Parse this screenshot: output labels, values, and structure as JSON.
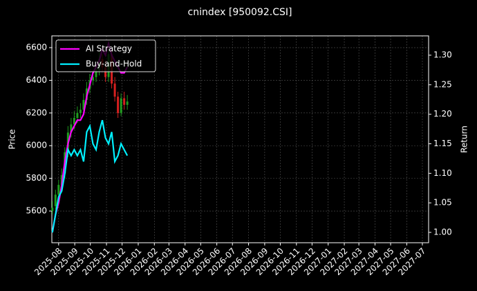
{
  "chart_data": {
    "type": "candlestick",
    "title": "cnindex [950092.CSI]",
    "ylabel": "Price",
    "y2label": "Return",
    "x": [
      -12,
      -6,
      0,
      6,
      12,
      18,
      24,
      30,
      36,
      42,
      48,
      54,
      60,
      66,
      72,
      78,
      84,
      90,
      96,
      102,
      108,
      114,
      120,
      126,
      132
    ],
    "open": [
      5600,
      5630,
      5700,
      5760,
      5830,
      5960,
      6080,
      6130,
      6170,
      6200,
      6220,
      6280,
      6350,
      6400,
      6420,
      6460,
      6530,
      6480,
      6420,
      6560,
      6380,
      6300,
      6200,
      6290,
      6250
    ],
    "high": [
      5660,
      5730,
      5790,
      5860,
      5990,
      6120,
      6170,
      6210,
      6240,
      6260,
      6320,
      6390,
      6440,
      6460,
      6500,
      6570,
      6560,
      6520,
      6600,
      6580,
      6420,
      6330,
      6320,
      6330,
      6310
    ],
    "low": [
      5580,
      5610,
      5680,
      5740,
      5800,
      5930,
      6050,
      6100,
      6140,
      6170,
      6190,
      6250,
      6320,
      6370,
      6390,
      6430,
      6450,
      6390,
      6390,
      6350,
      6270,
      6170,
      6180,
      6220,
      6220
    ],
    "close": [
      5620,
      5700,
      5760,
      5820,
      5960,
      6080,
      6130,
      6170,
      6200,
      6220,
      6280,
      6350,
      6400,
      6420,
      6460,
      6530,
      6480,
      6420,
      6560,
      6380,
      6300,
      6200,
      6290,
      6250,
      6270
    ],
    "up_color": "#1f9d1f",
    "down_color": "#d62020",
    "series": [
      {
        "name": "AI Strategy",
        "color": "#ff00ff",
        "axis": "y2",
        "values": [
          1.0,
          1.03,
          1.05,
          1.08,
          1.12,
          1.15,
          1.17,
          1.18,
          1.19,
          1.19,
          1.2,
          1.23,
          1.25,
          1.27,
          1.28,
          1.29,
          1.31,
          1.3,
          1.32,
          1.3,
          1.29,
          1.28,
          1.27,
          1.27,
          1.28
        ]
      },
      {
        "name": "Buy-and-Hold",
        "color": "#00f0ff",
        "axis": "y2",
        "values": [
          1.0,
          1.03,
          1.06,
          1.07,
          1.1,
          1.14,
          1.13,
          1.14,
          1.13,
          1.14,
          1.12,
          1.17,
          1.18,
          1.15,
          1.14,
          1.17,
          1.19,
          1.16,
          1.15,
          1.17,
          1.12,
          1.13,
          1.15,
          1.14,
          1.13
        ]
      }
    ],
    "xlim": [
      -13,
      711
    ],
    "xticks": [
      {
        "value": 0,
        "label": "2025-08"
      },
      {
        "value": 31,
        "label": "2025-09"
      },
      {
        "value": 61,
        "label": "2025-10"
      },
      {
        "value": 92,
        "label": "2025-11"
      },
      {
        "value": 122,
        "label": "2025-12"
      },
      {
        "value": 153,
        "label": "2026-01"
      },
      {
        "value": 184,
        "label": "2026-02"
      },
      {
        "value": 212,
        "label": "2026-03"
      },
      {
        "value": 243,
        "label": "2026-04"
      },
      {
        "value": 273,
        "label": "2026-05"
      },
      {
        "value": 304,
        "label": "2026-06"
      },
      {
        "value": 334,
        "label": "2026-07"
      },
      {
        "value": 365,
        "label": "2026-08"
      },
      {
        "value": 396,
        "label": "2026-09"
      },
      {
        "value": 426,
        "label": "2026-10"
      },
      {
        "value": 457,
        "label": "2026-11"
      },
      {
        "value": 487,
        "label": "2026-12"
      },
      {
        "value": 518,
        "label": "2027-01"
      },
      {
        "value": 549,
        "label": "2027-02"
      },
      {
        "value": 577,
        "label": "2027-03"
      },
      {
        "value": 608,
        "label": "2027-04"
      },
      {
        "value": 638,
        "label": "2027-05"
      },
      {
        "value": 669,
        "label": "2027-06"
      },
      {
        "value": 699,
        "label": "2027-07"
      }
    ],
    "ylim": [
      5406,
      6672
    ],
    "yticks": [
      5600,
      5800,
      6000,
      6200,
      6400,
      6600
    ],
    "y2lim": [
      0.9825,
      1.3327
    ],
    "y2ticks": [
      {
        "value": 1.0,
        "label": "1.00"
      },
      {
        "value": 1.05,
        "label": "1.05"
      },
      {
        "value": 1.1,
        "label": "1.10"
      },
      {
        "value": 1.15,
        "label": "1.15"
      },
      {
        "value": 1.2,
        "label": "1.20"
      },
      {
        "value": 1.25,
        "label": "1.25"
      },
      {
        "value": 1.3,
        "label": "1.30"
      }
    ],
    "grid": true,
    "legend": "upper left"
  }
}
